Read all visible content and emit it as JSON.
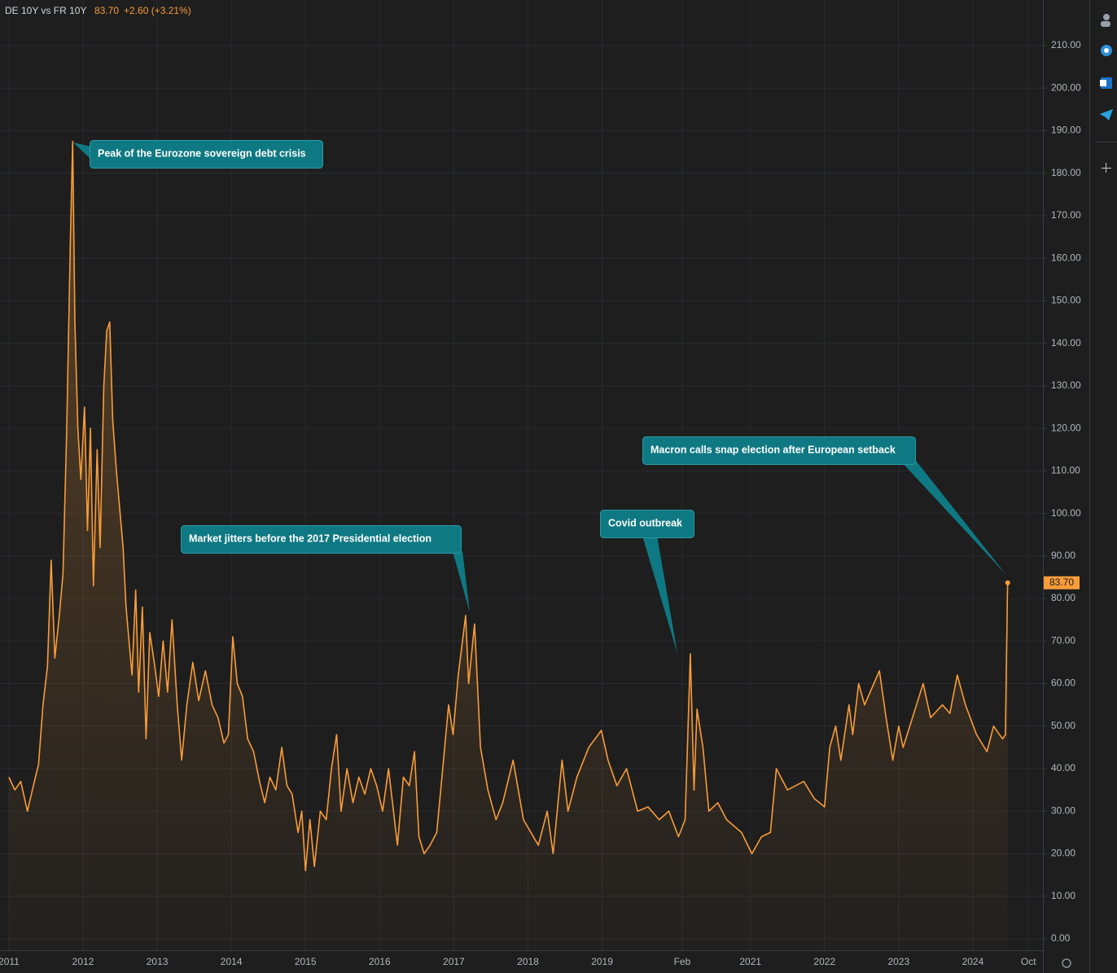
{
  "header": {
    "symbol": "DE 10Y vs FR 10Y",
    "price": "83.70",
    "change": "+2.60 (+3.21%)"
  },
  "chart_data": {
    "type": "line",
    "x": [
      2011.0,
      2011.08,
      2011.16,
      2011.25,
      2011.33,
      2011.4,
      2011.46,
      2011.52,
      2011.57,
      2011.62,
      2011.68,
      2011.73,
      2011.78,
      2011.83,
      2011.86,
      2011.89,
      2011.93,
      2011.97,
      2012.02,
      2012.06,
      2012.1,
      2012.14,
      2012.19,
      2012.23,
      2012.28,
      2012.32,
      2012.36,
      2012.4,
      2012.45,
      2012.5,
      2012.54,
      2012.58,
      2012.62,
      2012.66,
      2012.71,
      2012.75,
      2012.8,
      2012.85,
      2012.9,
      2012.96,
      2013.02,
      2013.08,
      2013.14,
      2013.2,
      2013.27,
      2013.33,
      2013.4,
      2013.48,
      2013.56,
      2013.65,
      2013.74,
      2013.82,
      2013.9,
      2013.96,
      2014.02,
      2014.08,
      2014.15,
      2014.22,
      2014.3,
      2014.38,
      2014.45,
      2014.52,
      2014.6,
      2014.68,
      2014.75,
      2014.82,
      2014.9,
      2014.95,
      2015.0,
      2015.06,
      2015.12,
      2015.2,
      2015.28,
      2015.35,
      2015.42,
      2015.48,
      2015.56,
      2015.64,
      2015.72,
      2015.8,
      2015.88,
      2015.96,
      2016.04,
      2016.12,
      2016.24,
      2016.32,
      2016.4,
      2016.47,
      2016.53,
      2016.6,
      2016.68,
      2016.77,
      2016.84,
      2016.93,
      2016.99,
      2017.06,
      2017.16,
      2017.2,
      2017.28,
      2017.36,
      2017.46,
      2017.57,
      2017.66,
      2017.8,
      2017.94,
      2018.14,
      2018.26,
      2018.34,
      2018.46,
      2018.54,
      2018.66,
      2018.82,
      2018.99,
      2019.08,
      2019.2,
      2019.33,
      2019.48,
      2019.62,
      2019.77,
      2019.9,
      2020.03,
      2020.12,
      2020.19,
      2020.24,
      2020.28,
      2020.36,
      2020.44,
      2020.56,
      2020.68,
      2020.88,
      2021.02,
      2021.15,
      2021.27,
      2021.35,
      2021.5,
      2021.72,
      2021.86,
      2022.0,
      2022.07,
      2022.15,
      2022.22,
      2022.33,
      2022.38,
      2022.46,
      2022.54,
      2022.74,
      2022.83,
      2022.92,
      2023.0,
      2023.06,
      2023.33,
      2023.43,
      2023.59,
      2023.69,
      2023.79,
      2023.9,
      2024.05,
      2024.19,
      2024.28,
      2024.4,
      2024.44,
      2024.45,
      2024.46,
      2024.465,
      2024.47
    ],
    "series": [
      {
        "name": "DE 10Y vs FR 10Y",
        "color": "#f89c3a",
        "values": [
          38,
          35,
          37,
          30,
          36,
          41,
          55,
          64,
          89,
          66,
          76,
          86,
          120,
          165,
          187.5,
          145,
          120,
          108,
          125,
          96,
          120,
          83,
          115,
          92,
          130,
          143,
          145,
          122,
          110,
          100,
          92,
          78,
          70,
          62,
          82,
          58,
          78,
          47,
          72,
          65,
          57,
          70,
          58,
          75,
          55,
          42,
          55,
          65,
          56,
          63,
          55,
          52,
          46,
          48,
          71,
          60,
          57,
          47,
          44,
          37,
          32,
          38,
          35,
          45,
          36,
          34,
          25,
          30,
          16,
          28,
          17,
          30,
          28,
          40,
          48,
          30,
          40,
          32,
          38,
          34,
          40,
          36,
          30,
          40,
          22,
          38,
          36,
          44,
          24,
          20,
          22,
          25,
          38,
          55,
          48,
          62,
          76,
          60,
          74,
          45,
          35,
          28,
          32,
          42,
          28,
          22,
          30,
          20,
          42,
          30,
          38,
          45,
          49,
          42,
          36,
          40,
          30,
          31,
          28,
          30,
          24,
          28,
          67,
          35,
          54,
          45,
          30,
          32,
          28,
          25,
          20,
          24,
          25,
          40,
          35,
          37,
          33,
          31,
          45,
          50,
          42,
          55,
          48,
          60,
          55,
          63,
          52,
          42,
          50,
          45,
          60,
          52,
          55,
          53,
          62,
          55,
          48,
          44,
          50,
          47,
          48,
          62,
          73,
          80,
          83.7
        ]
      }
    ],
    "xlim": [
      2010.88,
      2024.945
    ],
    "xticks": [
      2011,
      2012,
      2013,
      2014,
      2015,
      2016,
      2017,
      2018,
      2019,
      {
        "value": 2020.08,
        "label": "Feb"
      },
      2021,
      2022,
      2023,
      2024,
      {
        "value": 2024.75,
        "label": "Oct"
      }
    ],
    "ylim": [
      -2.68,
      220.71
    ],
    "yticks": [
      {
        "value": 0,
        "label": "0.00"
      },
      {
        "value": 10,
        "label": "10.00"
      },
      {
        "value": 20,
        "label": "20.00"
      },
      {
        "value": 30,
        "label": "30.00"
      },
      {
        "value": 40,
        "label": "40.00"
      },
      {
        "value": 50,
        "label": "50.00"
      },
      {
        "value": 60,
        "label": "60.00"
      },
      {
        "value": 70,
        "label": "70.00"
      },
      {
        "value": 80,
        "label": "80.00"
      },
      {
        "value": 90,
        "label": "90.00"
      },
      {
        "value": 100,
        "label": "100.00"
      },
      {
        "value": 110,
        "label": "110.00"
      },
      {
        "value": 120,
        "label": "120.00"
      },
      {
        "value": 130,
        "label": "130.00"
      },
      {
        "value": 140,
        "label": "140.00"
      },
      {
        "value": 150,
        "label": "150.00"
      },
      {
        "value": 160,
        "label": "160.00"
      },
      {
        "value": 170,
        "label": "170.00"
      },
      {
        "value": 180,
        "label": "180.00"
      },
      {
        "value": 190,
        "label": "190.00"
      },
      {
        "value": 200,
        "label": "200.00"
      },
      {
        "value": 210,
        "label": "210.00"
      }
    ],
    "grid": true,
    "annotations": [
      {
        "text": "Peak of the Eurozone sovereign debt crisis"
      },
      {
        "text": "Market jitters before the 2017 Presidential election"
      },
      {
        "text": "Covid outbreak"
      },
      {
        "text": "Macron calls snap election after European setback"
      }
    ]
  }
}
